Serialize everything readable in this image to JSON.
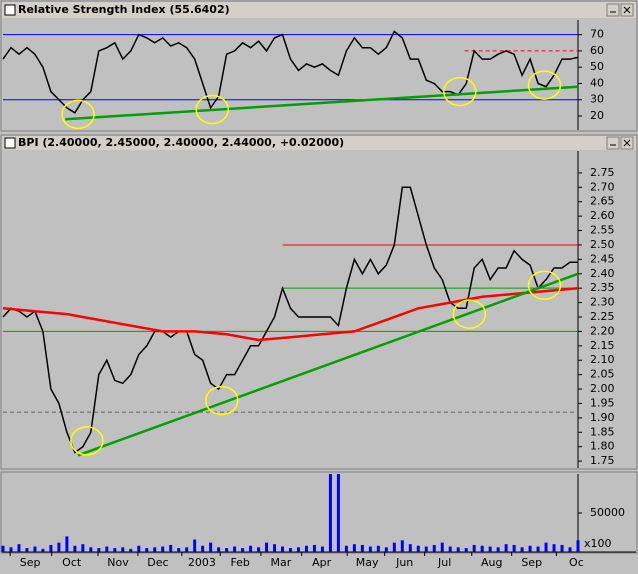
{
  "chart_data": [
    {
      "type": "line",
      "title": "Relative Strength Index (55.6402)",
      "xlim": [
        0,
        72
      ],
      "ylim": [
        11.4,
        79
      ],
      "yticks": [
        20,
        30,
        40,
        50,
        60,
        70
      ],
      "series": [
        {
          "color": "#000000",
          "values": [
            55,
            62,
            58,
            62,
            58,
            50,
            35,
            30,
            25,
            22,
            30,
            35,
            60,
            62,
            65,
            55,
            60,
            70,
            68,
            65,
            68,
            63,
            65,
            62,
            55,
            40,
            25,
            32,
            58,
            60,
            65,
            62,
            66,
            60,
            68,
            70,
            55,
            48,
            52,
            50,
            52,
            48,
            45,
            60,
            68,
            62,
            62,
            58,
            62,
            72,
            68,
            55,
            55,
            42,
            40,
            35,
            35,
            33,
            40,
            60,
            55,
            55,
            58,
            60,
            58,
            45,
            55,
            40,
            38,
            45,
            55,
            55,
            56
          ]
        }
      ],
      "levels": [
        {
          "value": 70,
          "color": "#0000ff"
        },
        {
          "value": 30,
          "color": "#0000ff"
        },
        {
          "value": 60,
          "color": "#ff0000",
          "dashed": true,
          "from": 57.8
        }
      ],
      "trendlines": [
        {
          "color": "#00a000",
          "from": [
            7.8,
            18
          ],
          "to": [
            72,
            38
          ]
        }
      ],
      "highlights": [
        [
          9.4,
          21
        ],
        [
          26.2,
          24
        ],
        [
          57.2,
          35
        ],
        [
          67.8,
          39
        ]
      ]
    },
    {
      "type": "line",
      "title": "BPI (2.40000, 2.45000, 2.40000, 2.44000, +0.02000)",
      "xlim": [
        0,
        72
      ],
      "ylim": [
        1.726,
        2.826
      ],
      "yticks": [
        {
          "value": 1.75,
          "label": "1.75"
        },
        {
          "value": 1.8,
          "label": "1.80"
        },
        {
          "value": 1.85,
          "label": "1.85"
        },
        {
          "value": 1.9,
          "label": "1.90"
        },
        {
          "value": 1.95,
          "label": "1.95"
        },
        {
          "value": 2.0,
          "label": "2.00"
        },
        {
          "value": 2.05,
          "label": "2.05"
        },
        {
          "value": 2.1,
          "label": "2.10"
        },
        {
          "value": 2.15,
          "label": "2.15"
        },
        {
          "value": 2.2,
          "label": "2.20"
        },
        {
          "value": 2.25,
          "label": "2.25"
        },
        {
          "value": 2.3,
          "label": "2.30"
        },
        {
          "value": 2.35,
          "label": "2.35"
        },
        {
          "value": 2.4,
          "label": "2.40"
        },
        {
          "value": 2.45,
          "label": "2.45"
        },
        {
          "value": 2.5,
          "label": "2.50"
        },
        {
          "value": 2.55,
          "label": "2.55"
        },
        {
          "value": 2.6,
          "label": "2.60"
        },
        {
          "value": 2.65,
          "label": "2.65"
        },
        {
          "value": 2.7,
          "label": "2.70"
        },
        {
          "value": 2.75,
          "label": "2.75"
        }
      ],
      "series": [
        {
          "color": "#000000",
          "values": [
            2.25,
            2.28,
            2.27,
            2.25,
            2.27,
            2.2,
            2.0,
            1.95,
            1.85,
            1.78,
            1.8,
            1.85,
            2.05,
            2.1,
            2.03,
            2.02,
            2.05,
            2.12,
            2.15,
            2.2,
            2.2,
            2.18,
            2.2,
            2.2,
            2.12,
            2.1,
            2.02,
            2.0,
            2.05,
            2.05,
            2.1,
            2.15,
            2.15,
            2.2,
            2.25,
            2.35,
            2.28,
            2.25,
            2.25,
            2.25,
            2.25,
            2.25,
            2.22,
            2.35,
            2.45,
            2.4,
            2.45,
            2.4,
            2.43,
            2.5,
            2.7,
            2.7,
            2.6,
            2.5,
            2.42,
            2.38,
            2.3,
            2.28,
            2.28,
            2.42,
            2.45,
            2.38,
            2.42,
            2.42,
            2.48,
            2.45,
            2.43,
            2.35,
            2.38,
            2.42,
            2.42,
            2.44,
            2.44
          ]
        },
        {
          "color": "#ff0000",
          "x": [
            0,
            4,
            8,
            12,
            16,
            20,
            24,
            28,
            32,
            36,
            40,
            44,
            48,
            52,
            56,
            60,
            64,
            68,
            72
          ],
          "values": [
            2.28,
            2.27,
            2.26,
            2.24,
            2.22,
            2.2,
            2.2,
            2.19,
            2.17,
            2.18,
            2.19,
            2.2,
            2.24,
            2.28,
            2.3,
            2.32,
            2.33,
            2.34,
            2.35
          ]
        }
      ],
      "levels": [
        {
          "value": 2.5,
          "color": "#ff0000",
          "from": 35
        },
        {
          "value": 2.35,
          "color": "#00a000",
          "from": 35
        },
        {
          "value": 2.2,
          "color": "#00a000"
        },
        {
          "value": 1.92,
          "color": "#606060",
          "dashed": true
        }
      ],
      "trendlines": [
        {
          "color": "#00a000",
          "from": [
            9.4,
            1.77
          ],
          "to": [
            72,
            2.4
          ]
        }
      ],
      "highlights": [
        [
          10.5,
          1.82
        ],
        [
          27.4,
          1.96
        ],
        [
          58.4,
          2.26
        ],
        [
          67.8,
          2.36
        ]
      ]
    },
    {
      "type": "bar",
      "color": "#0000ff",
      "unit_label": "x100",
      "xlim": [
        0,
        72
      ],
      "ylim": [
        0,
        100000
      ],
      "yticks": [
        50000
      ],
      "values": [
        8000,
        6000,
        10000,
        5000,
        7000,
        4000,
        9000,
        12000,
        20000,
        8000,
        10000,
        6000,
        5000,
        7000,
        5000,
        6000,
        4000,
        8000,
        5000,
        6000,
        7000,
        9000,
        5000,
        6000,
        16000,
        8000,
        12000,
        6000,
        5000,
        7000,
        5000,
        8000,
        6000,
        12000,
        10000,
        7000,
        5000,
        6000,
        8000,
        9000,
        7000,
        100000,
        100000,
        8000,
        10000,
        9000,
        7000,
        8000,
        6000,
        12000,
        15000,
        10000,
        8000,
        7000,
        9000,
        12000,
        7000,
        6000,
        5000,
        9000,
        8000,
        7000,
        6000,
        10000,
        9000,
        6000,
        8000,
        7000,
        12000,
        10000,
        9000,
        6000,
        15000
      ],
      "xticks": [
        {
          "value": 3.4,
          "label": "Sep"
        },
        {
          "value": 8.6,
          "label": "Oct"
        },
        {
          "value": 14.4,
          "label": "Nov"
        },
        {
          "value": 19.4,
          "label": "Dec"
        },
        {
          "value": 24.9,
          "label": "2003"
        },
        {
          "value": 29.7,
          "label": "Feb"
        },
        {
          "value": 34.8,
          "label": "Mar"
        },
        {
          "value": 39.9,
          "label": "Apr"
        },
        {
          "value": 45.6,
          "label": "May"
        },
        {
          "value": 50.3,
          "label": "Jun"
        },
        {
          "value": 55.3,
          "label": "Jul"
        },
        {
          "value": 61.2,
          "label": "Aug"
        },
        {
          "value": 66.2,
          "label": "Sep"
        },
        {
          "value": 71.8,
          "label": "Oc"
        }
      ]
    }
  ]
}
